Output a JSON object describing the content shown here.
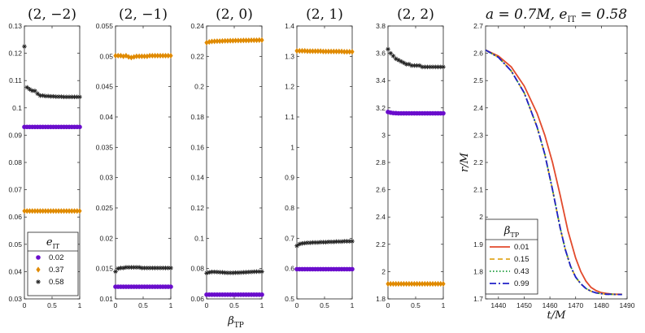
{
  "xlabel_shared": "β_TP",
  "colors": {
    "e002": "#6a0dcc",
    "e037": "#e08a00",
    "e058": "#222222"
  },
  "legend_left": {
    "title": "e_IT",
    "entries": [
      {
        "label": "0.02",
        "marker": "circle",
        "color": "#6a0dcc"
      },
      {
        "label": "0.37",
        "marker": "diamond",
        "color": "#e08a00"
      },
      {
        "label": "0.58",
        "marker": "star",
        "color": "#222222"
      }
    ]
  },
  "legend_right": {
    "title": "β_TP",
    "entries": [
      {
        "label": "0.01",
        "dash": "solid",
        "color": "#e24a2c"
      },
      {
        "label": "0.15",
        "dash": "dashed",
        "color": "#e0a820"
      },
      {
        "label": "0.43",
        "dash": "dotted",
        "color": "#1a9a3a"
      },
      {
        "label": "0.99",
        "dash": "dashdot",
        "color": "#2020c8"
      }
    ]
  },
  "chart_data": [
    {
      "type": "scatter",
      "title": "(2, −2)",
      "xlim": [
        0,
        1
      ],
      "ylim": [
        0.03,
        0.13
      ],
      "xticks": [
        "0",
        "0.5",
        "1"
      ],
      "yticks": [
        "0.03",
        "0.04",
        "0.05",
        "0.06",
        "0.07",
        "0.08",
        "0.09",
        "0.1",
        "0.11",
        "0.12",
        "0.13"
      ],
      "series": [
        {
          "name": "0.02",
          "values": [
            0.093,
            0.093,
            0.093,
            0.093,
            0.093,
            0.093,
            0.093,
            0.093,
            0.093,
            0.093,
            0.093,
            0.093,
            0.093,
            0.093,
            0.093,
            0.093,
            0.093,
            0.093,
            0.093,
            0.093,
            0.093,
            0.093
          ]
        },
        {
          "name": "0.37",
          "values": [
            0.0622,
            0.0622,
            0.0622,
            0.0622,
            0.0622,
            0.0622,
            0.0622,
            0.0622,
            0.0622,
            0.0622,
            0.0622,
            0.0622,
            0.0622,
            0.0622,
            0.0622,
            0.0622,
            0.0622,
            0.0622,
            0.0622,
            0.0622,
            0.0622,
            0.0622
          ]
        },
        {
          "name": "0.58",
          "values": [
            0.1225,
            0.1075,
            0.1068,
            0.1063,
            0.1062,
            0.1052,
            0.1045,
            0.1045,
            0.1043,
            0.1043,
            0.1042,
            0.1042,
            0.1041,
            0.1041,
            0.1041,
            0.104,
            0.104,
            0.104,
            0.104,
            0.104,
            0.104,
            0.104
          ]
        }
      ]
    },
    {
      "type": "scatter",
      "title": "(2, −1)",
      "xlim": [
        0,
        1
      ],
      "ylim": [
        0.01,
        0.055
      ],
      "xticks": [
        "0",
        "0.5",
        "1"
      ],
      "yticks": [
        "0.01",
        "0.015",
        "0.02",
        "0.025",
        "0.03",
        "0.035",
        "0.04",
        "0.045",
        "0.05",
        "0.055"
      ],
      "series": [
        {
          "name": "0.02",
          "values": [
            0.012,
            0.012,
            0.012,
            0.012,
            0.012,
            0.012,
            0.012,
            0.012,
            0.012,
            0.012,
            0.012,
            0.012,
            0.012,
            0.012,
            0.012,
            0.012,
            0.012,
            0.012,
            0.012,
            0.012,
            0.012,
            0.012
          ]
        },
        {
          "name": "0.37",
          "values": [
            0.0501,
            0.0501,
            0.0501,
            0.05,
            0.0501,
            0.0499,
            0.0498,
            0.0499,
            0.05,
            0.05,
            0.05,
            0.05,
            0.05,
            0.0501,
            0.0501,
            0.0501,
            0.0501,
            0.0501,
            0.0501,
            0.0501,
            0.0501,
            0.0501
          ]
        },
        {
          "name": "0.58",
          "values": [
            0.0145,
            0.015,
            0.0151,
            0.0151,
            0.0152,
            0.0152,
            0.0152,
            0.0152,
            0.0152,
            0.0152,
            0.0151,
            0.0151,
            0.0151,
            0.0151,
            0.0151,
            0.0151,
            0.0151,
            0.0151,
            0.0151,
            0.0151,
            0.0151,
            0.0151
          ]
        }
      ]
    },
    {
      "type": "scatter",
      "title": "(2, 0)",
      "xlim": [
        0,
        1
      ],
      "ylim": [
        0.06,
        0.24
      ],
      "xticks": [
        "0",
        "0.5",
        "1"
      ],
      "yticks": [
        "0.06",
        "0.08",
        "0.1",
        "0.12",
        "0.14",
        "0.16",
        "0.18",
        "0.2",
        "0.22",
        "0.24"
      ],
      "series": [
        {
          "name": "0.02",
          "values": [
            0.0628,
            0.0628,
            0.0628,
            0.0628,
            0.0628,
            0.0628,
            0.0628,
            0.0628,
            0.0628,
            0.0628,
            0.0628,
            0.0628,
            0.0628,
            0.0628,
            0.0628,
            0.0628,
            0.0628,
            0.0628,
            0.0628,
            0.0628,
            0.0628,
            0.0628
          ]
        },
        {
          "name": "0.37",
          "values": [
            0.229,
            0.2295,
            0.2298,
            0.2299,
            0.23,
            0.23,
            0.2301,
            0.2302,
            0.2302,
            0.2303,
            0.2303,
            0.2304,
            0.2304,
            0.2304,
            0.2305,
            0.2305,
            0.2305,
            0.2306,
            0.2306,
            0.2306,
            0.2307,
            0.2307
          ]
        },
        {
          "name": "0.58",
          "values": [
            0.077,
            0.0775,
            0.0778,
            0.0778,
            0.0777,
            0.0776,
            0.0775,
            0.0773,
            0.0772,
            0.0772,
            0.0772,
            0.0773,
            0.0773,
            0.0774,
            0.0775,
            0.0776,
            0.0777,
            0.0778,
            0.0779,
            0.078,
            0.078,
            0.078
          ]
        }
      ]
    },
    {
      "type": "scatter",
      "title": "(2, 1)",
      "xlim": [
        0,
        1
      ],
      "ylim": [
        0.5,
        1.4
      ],
      "xticks": [
        "0",
        "0.5",
        "1"
      ],
      "yticks": [
        "0.5",
        "0.6",
        "0.7",
        "0.8",
        "0.9",
        "1",
        "1.1",
        "1.2",
        "1.3",
        "1.4"
      ],
      "series": [
        {
          "name": "0.02",
          "values": [
            0.598,
            0.598,
            0.598,
            0.598,
            0.598,
            0.598,
            0.598,
            0.598,
            0.598,
            0.598,
            0.598,
            0.598,
            0.598,
            0.598,
            0.598,
            0.598,
            0.598,
            0.598,
            0.598,
            0.598,
            0.598,
            0.598
          ]
        },
        {
          "name": "0.37",
          "values": [
            1.318,
            1.318,
            1.318,
            1.318,
            1.317,
            1.317,
            1.317,
            1.317,
            1.317,
            1.317,
            1.316,
            1.316,
            1.316,
            1.316,
            1.316,
            1.316,
            1.316,
            1.316,
            1.315,
            1.315,
            1.315,
            1.315
          ]
        },
        {
          "name": "0.58",
          "values": [
            0.675,
            0.681,
            0.683,
            0.684,
            0.685,
            0.685,
            0.686,
            0.686,
            0.686,
            0.687,
            0.687,
            0.687,
            0.688,
            0.688,
            0.688,
            0.689,
            0.689,
            0.689,
            0.69,
            0.69,
            0.69,
            0.69
          ]
        }
      ]
    },
    {
      "type": "scatter",
      "title": "(2, 2)",
      "xlim": [
        0,
        1
      ],
      "ylim": [
        1.8,
        3.8
      ],
      "xticks": [
        "0",
        "0.5",
        "1"
      ],
      "yticks": [
        "1.8",
        "2",
        "2.2",
        "2.4",
        "2.6",
        "2.8",
        "3",
        "3.2",
        "3.4",
        "3.6",
        "3.8"
      ],
      "series": [
        {
          "name": "0.02",
          "values": [
            3.17,
            3.165,
            3.162,
            3.161,
            3.16,
            3.16,
            3.16,
            3.16,
            3.16,
            3.16,
            3.16,
            3.16,
            3.16,
            3.16,
            3.16,
            3.16,
            3.16,
            3.16,
            3.16,
            3.16,
            3.16,
            3.16
          ]
        },
        {
          "name": "0.37",
          "values": [
            1.91,
            1.91,
            1.91,
            1.91,
            1.91,
            1.91,
            1.91,
            1.91,
            1.91,
            1.91,
            1.91,
            1.91,
            1.91,
            1.91,
            1.91,
            1.91,
            1.91,
            1.91,
            1.91,
            1.91,
            1.91,
            1.91
          ]
        },
        {
          "name": "0.58",
          "values": [
            3.63,
            3.6,
            3.58,
            3.56,
            3.55,
            3.54,
            3.53,
            3.52,
            3.52,
            3.51,
            3.51,
            3.51,
            3.51,
            3.5,
            3.5,
            3.5,
            3.5,
            3.5,
            3.5,
            3.5,
            3.5,
            3.5
          ]
        }
      ]
    },
    {
      "type": "line",
      "title": "a = 0.7M, e_IT = 0.58",
      "xlabel": "t/M",
      "ylabel": "r/M",
      "xlim": [
        1435,
        1490
      ],
      "ylim": [
        1.7,
        2.7
      ],
      "xticks": [
        "1440",
        "1450",
        "1460",
        "1470",
        "1480",
        "1490"
      ],
      "yticks": [
        "1.7",
        "1.8",
        "1.9",
        "2",
        "2.1",
        "2.2",
        "2.3",
        "2.4",
        "2.5",
        "2.6",
        "2.7"
      ],
      "series": [
        {
          "name": "0.01",
          "x": [
            1435,
            1440,
            1445,
            1450,
            1455,
            1458,
            1461,
            1464,
            1467,
            1470,
            1472,
            1474,
            1476,
            1478,
            1480,
            1482,
            1484,
            1486,
            1488
          ],
          "y": [
            2.612,
            2.59,
            2.55,
            2.48,
            2.38,
            2.3,
            2.2,
            2.08,
            1.95,
            1.85,
            1.8,
            1.765,
            1.742,
            1.73,
            1.723,
            1.72,
            1.718,
            1.717,
            1.717
          ]
        },
        {
          "name": "0.15",
          "x": [
            1435,
            1440,
            1445,
            1450,
            1455,
            1458,
            1461,
            1464,
            1466,
            1468,
            1470,
            1472,
            1474,
            1476,
            1478,
            1480,
            1482,
            1484,
            1486,
            1488
          ],
          "y": [
            2.612,
            2.585,
            2.535,
            2.455,
            2.33,
            2.23,
            2.1,
            1.96,
            1.88,
            1.82,
            1.78,
            1.755,
            1.738,
            1.728,
            1.722,
            1.719,
            1.717,
            1.717,
            1.716,
            1.716
          ]
        },
        {
          "name": "0.43",
          "x": [
            1435,
            1440,
            1445,
            1450,
            1455,
            1458,
            1461,
            1464,
            1466,
            1468,
            1470,
            1472,
            1474,
            1476,
            1478,
            1480,
            1482,
            1484,
            1486,
            1488
          ],
          "y": [
            2.612,
            2.585,
            2.535,
            2.455,
            2.33,
            2.23,
            2.1,
            1.96,
            1.88,
            1.82,
            1.78,
            1.755,
            1.738,
            1.728,
            1.722,
            1.719,
            1.717,
            1.717,
            1.716,
            1.716
          ]
        },
        {
          "name": "0.99",
          "x": [
            1435,
            1440,
            1445,
            1450,
            1455,
            1458,
            1461,
            1464,
            1466,
            1468,
            1470,
            1472,
            1474,
            1476,
            1478,
            1480,
            1482,
            1484,
            1486,
            1488
          ],
          "y": [
            2.612,
            2.585,
            2.535,
            2.455,
            2.33,
            2.23,
            2.1,
            1.96,
            1.88,
            1.82,
            1.78,
            1.755,
            1.738,
            1.728,
            1.722,
            1.719,
            1.717,
            1.717,
            1.716,
            1.716
          ]
        }
      ]
    }
  ]
}
